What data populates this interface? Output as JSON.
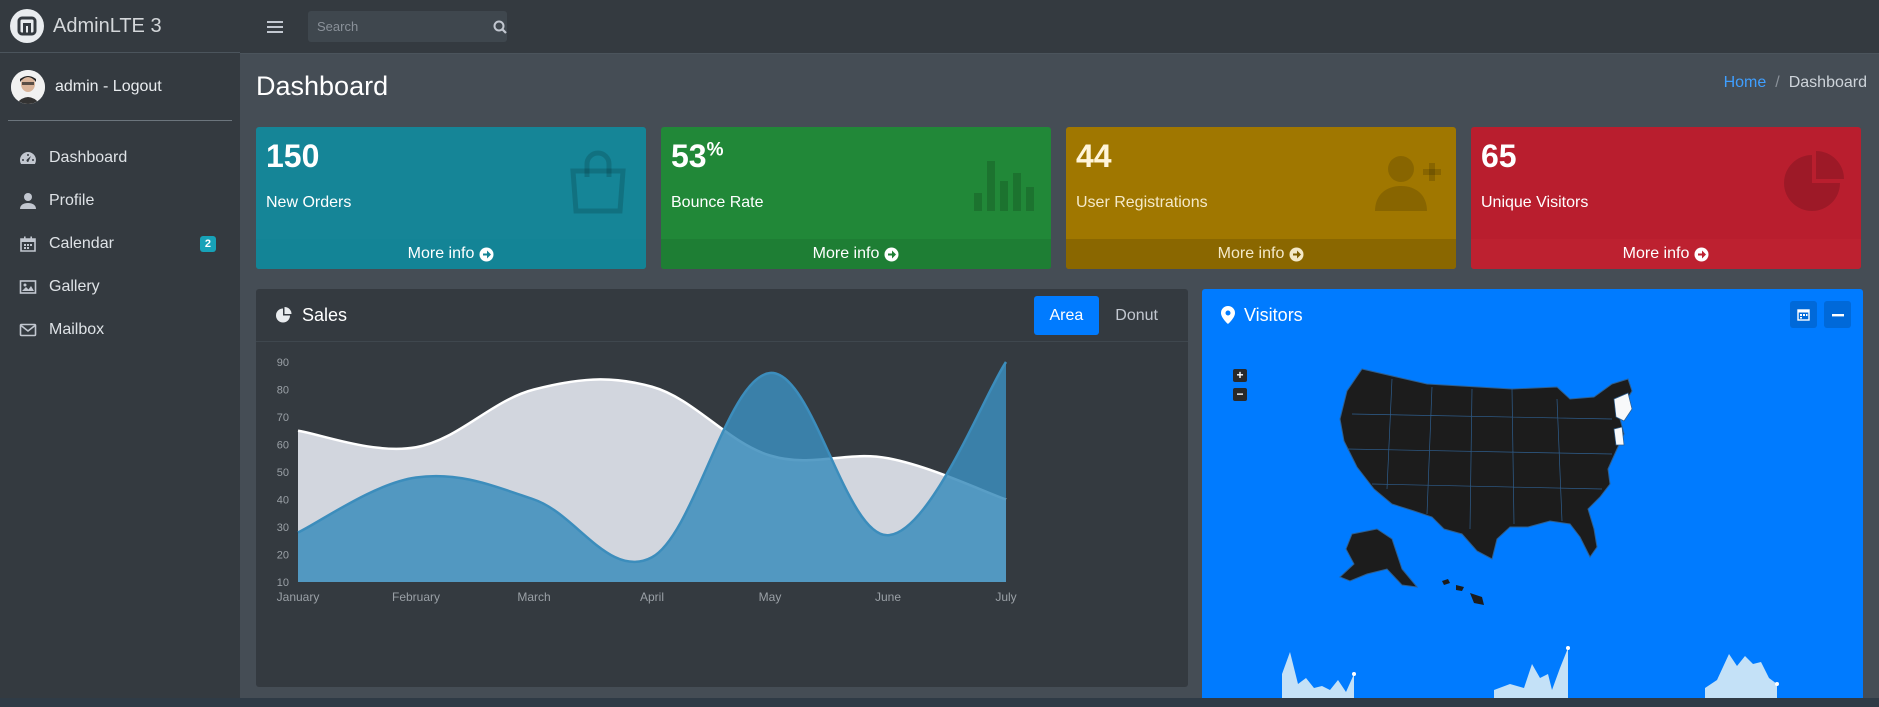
{
  "brand": {
    "name": "AdminLTE 3"
  },
  "user": {
    "label": "admin - Logout"
  },
  "sidebar": {
    "items": [
      {
        "label": "Dashboard",
        "icon": "tachometer-icon"
      },
      {
        "label": "Profile",
        "icon": "user-icon"
      },
      {
        "label": "Calendar",
        "icon": "calendar-icon",
        "badge": "2"
      },
      {
        "label": "Gallery",
        "icon": "image-icon"
      },
      {
        "label": "Mailbox",
        "icon": "envelope-icon"
      }
    ]
  },
  "search": {
    "placeholder": "Search",
    "value": ""
  },
  "page": {
    "title": "Dashboard"
  },
  "breadcrumb": {
    "home": "Home",
    "separator": "/",
    "current": "Dashboard"
  },
  "boxes": [
    {
      "value": "150",
      "suffix": "",
      "label": "New Orders",
      "footer": "More info",
      "color": "#17a2b8",
      "icon": "shopping-bag-icon"
    },
    {
      "value": "53",
      "suffix": "%",
      "label": "Bounce Rate",
      "footer": "More info",
      "color": "#28a745",
      "icon": "bar-chart-icon"
    },
    {
      "value": "44",
      "suffix": "",
      "label": "User Registrations",
      "footer": "More info",
      "color": "#ffc107",
      "icon": "user-plus-icon"
    },
    {
      "value": "65",
      "suffix": "",
      "label": "Unique Visitors",
      "footer": "More info",
      "color": "#dc3545",
      "icon": "pie-chart-icon"
    }
  ],
  "sales": {
    "title": "Sales",
    "tabs": [
      {
        "label": "Area",
        "active": true
      },
      {
        "label": "Donut",
        "active": false
      }
    ]
  },
  "visitors": {
    "title": "Visitors"
  },
  "chart_data": {
    "type": "area",
    "categories": [
      "January",
      "February",
      "March",
      "April",
      "May",
      "June",
      "July"
    ],
    "ylim": [
      10,
      90
    ],
    "yticks": [
      10,
      20,
      30,
      40,
      50,
      60,
      70,
      80,
      90
    ],
    "grid": false,
    "series": [
      {
        "values": [
          65,
          59,
          80,
          81,
          56,
          55,
          40
        ],
        "color": "#d2d6de"
      },
      {
        "values": [
          28,
          48,
          40,
          19,
          86,
          27,
          90
        ],
        "color": "#3c8dbc"
      }
    ]
  }
}
